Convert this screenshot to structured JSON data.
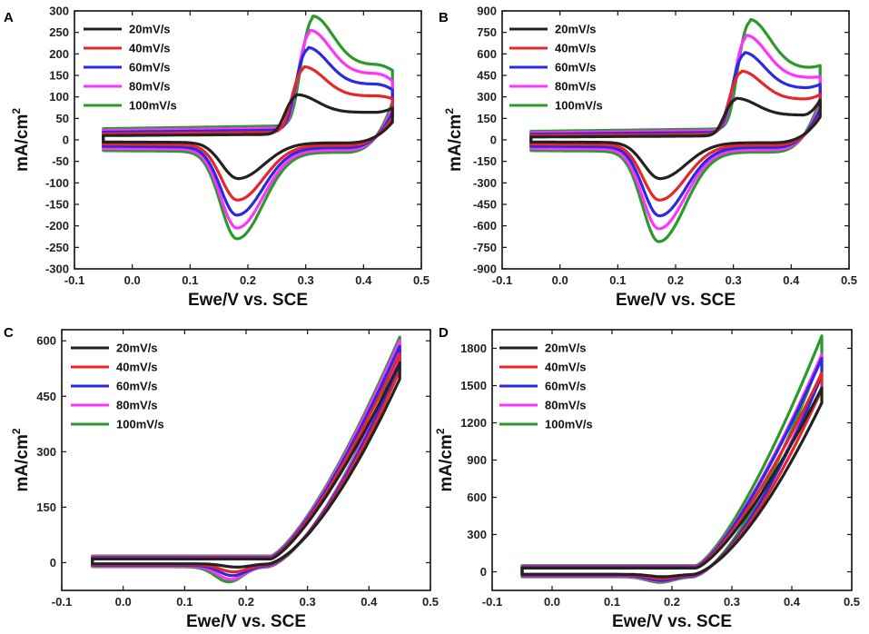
{
  "chart_data": [
    {
      "panel": "A",
      "type": "line",
      "xlabel": "Ewe/V vs. SCE",
      "ylabel": "mA/cm",
      "ylabel_sup": "2",
      "xlim": [
        -0.1,
        0.5
      ],
      "ylim": [
        -300,
        300
      ],
      "xticks": [
        -0.1,
        0.0,
        0.1,
        0.2,
        0.3,
        0.4,
        0.5
      ],
      "xtick_labels": [
        "-0.1",
        "0.0",
        "0.1",
        "0.2",
        "0.3",
        "0.4",
        "0.5"
      ],
      "yticks": [
        -300,
        -250,
        -200,
        -150,
        -100,
        -50,
        0,
        50,
        100,
        150,
        200,
        250,
        300
      ],
      "ytick_labels": [
        "-300",
        "-250",
        "-200",
        "-150",
        "-100",
        "-50",
        "0",
        "50",
        "100",
        "150",
        "200",
        "250",
        "300"
      ],
      "kind": "cv",
      "series": [
        {
          "name": "20mV/s",
          "color": "#222222",
          "base_c": 10,
          "base_a": -5,
          "slope_c": 60,
          "slope_a": 25,
          "ox_peak": 105,
          "ox_x": 0.285,
          "red_peak": -90,
          "red_x": 0.183,
          "end": 75
        },
        {
          "name": "40mV/s",
          "color": "#e8262a",
          "base_c": 14,
          "base_a": -10,
          "slope_c": 80,
          "slope_a": 35,
          "ox_peak": 170,
          "ox_x": 0.297,
          "red_peak": -140,
          "red_x": 0.182,
          "end": 95
        },
        {
          "name": "60mV/s",
          "color": "#2a2ae0",
          "base_c": 18,
          "base_a": -15,
          "slope_c": 100,
          "slope_a": 40,
          "ox_peak": 215,
          "ox_x": 0.303,
          "red_peak": -175,
          "red_x": 0.181,
          "end": 115
        },
        {
          "name": "80mV/s",
          "color": "#ff33ff",
          "base_c": 22,
          "base_a": -20,
          "slope_c": 120,
          "slope_a": 45,
          "ox_peak": 255,
          "ox_x": 0.307,
          "red_peak": -205,
          "red_x": 0.181,
          "end": 135
        },
        {
          "name": "100mV/s",
          "color": "#2a9a2a",
          "base_c": 26,
          "base_a": -25,
          "slope_c": 140,
          "slope_a": 50,
          "ox_peak": 288,
          "ox_x": 0.312,
          "red_peak": -230,
          "red_x": 0.181,
          "end": 160
        }
      ]
    },
    {
      "panel": "B",
      "type": "line",
      "xlabel": "Ewe/V vs. SCE",
      "ylabel": "mA/cm",
      "ylabel_sup": "2",
      "xlim": [
        -0.1,
        0.5
      ],
      "ylim": [
        -900,
        900
      ],
      "xticks": [
        -0.1,
        0.0,
        0.1,
        0.2,
        0.3,
        0.4,
        0.5
      ],
      "xtick_labels": [
        "-0.1",
        "0.0",
        "0.1",
        "0.2",
        "0.3",
        "0.4",
        "0.5"
      ],
      "yticks": [
        -900,
        -750,
        -600,
        -450,
        -300,
        -150,
        0,
        150,
        300,
        450,
        600,
        750,
        900
      ],
      "ytick_labels": [
        "-900",
        "-750",
        "-600",
        "-450",
        "-300",
        "-150",
        "0",
        "150",
        "300",
        "450",
        "600",
        "750",
        "900"
      ],
      "kind": "cv",
      "series": [
        {
          "name": "20mV/s",
          "color": "#222222",
          "base_c": 20,
          "base_a": -15,
          "slope_c": 150,
          "slope_a": 60,
          "ox_peak": 290,
          "ox_x": 0.305,
          "red_peak": -270,
          "red_x": 0.173,
          "end": 290
        },
        {
          "name": "40mV/s",
          "color": "#e8262a",
          "base_c": 30,
          "base_a": -30,
          "slope_c": 200,
          "slope_a": 80,
          "ox_peak": 480,
          "ox_x": 0.313,
          "red_peak": -420,
          "red_x": 0.172,
          "end": 320
        },
        {
          "name": "60mV/s",
          "color": "#2a2ae0",
          "base_c": 40,
          "base_a": -45,
          "slope_c": 250,
          "slope_a": 95,
          "ox_peak": 610,
          "ox_x": 0.318,
          "red_peak": -530,
          "red_x": 0.172,
          "end": 390
        },
        {
          "name": "80mV/s",
          "color": "#ff33ff",
          "base_c": 50,
          "base_a": -60,
          "slope_c": 290,
          "slope_a": 110,
          "ox_peak": 730,
          "ox_x": 0.322,
          "red_peak": -620,
          "red_x": 0.171,
          "end": 440
        },
        {
          "name": "100mV/s",
          "color": "#2a9a2a",
          "base_c": 60,
          "base_a": -75,
          "slope_c": 330,
          "slope_a": 125,
          "ox_peak": 840,
          "ox_x": 0.328,
          "red_peak": -710,
          "red_x": 0.171,
          "end": 520
        }
      ]
    },
    {
      "panel": "C",
      "type": "line",
      "xlabel": "Ewe/V vs. SCE",
      "ylabel": "mA/cm",
      "ylabel_sup": "2",
      "xlim": [
        -0.1,
        0.5
      ],
      "ylim": [
        -75,
        630
      ],
      "xticks": [
        -0.1,
        0.0,
        0.1,
        0.2,
        0.3,
        0.4,
        0.5
      ],
      "xtick_labels": [
        "-0.1",
        "0.0",
        "0.1",
        "0.2",
        "0.3",
        "0.4",
        "0.5"
      ],
      "yticks": [
        0,
        150,
        300,
        450,
        600
      ],
      "ytick_labels": [
        "0",
        "150",
        "300",
        "450",
        "600"
      ],
      "kind": "oer",
      "series": [
        {
          "name": "20mV/s",
          "color": "#222222",
          "base_c": 10,
          "base_a": -3,
          "end": 540,
          "dip": -12,
          "dip_x": 0.185
        },
        {
          "name": "40mV/s",
          "color": "#e8262a",
          "base_c": 12,
          "base_a": -5,
          "end": 565,
          "dip": -25,
          "dip_x": 0.18
        },
        {
          "name": "60mV/s",
          "color": "#2a2ae0",
          "base_c": 14,
          "base_a": -7,
          "end": 585,
          "dip": -35,
          "dip_x": 0.178
        },
        {
          "name": "80mV/s",
          "color": "#ff33ff",
          "base_c": 16,
          "base_a": -9,
          "end": 600,
          "dip": -45,
          "dip_x": 0.175
        },
        {
          "name": "100mV/s",
          "color": "#2a9a2a",
          "base_c": 18,
          "base_a": -11,
          "end": 610,
          "dip": -52,
          "dip_x": 0.172
        }
      ]
    },
    {
      "panel": "D",
      "type": "line",
      "xlabel": "Ewe/V vs. SCE",
      "ylabel": "mA/cm",
      "ylabel_sup": "2",
      "xlim": [
        -0.1,
        0.5
      ],
      "ylim": [
        -150,
        1950
      ],
      "xticks": [
        -0.1,
        0.0,
        0.1,
        0.2,
        0.3,
        0.4,
        0.5
      ],
      "xtick_labels": [
        "-0.1",
        "0.0",
        "0.1",
        "0.2",
        "0.3",
        "0.4",
        "0.5"
      ],
      "yticks": [
        0,
        300,
        600,
        900,
        1200,
        1500,
        1800
      ],
      "ytick_labels": [
        "0",
        "300",
        "600",
        "900",
        "1200",
        "1500",
        "1800"
      ],
      "kind": "oer",
      "series": [
        {
          "name": "20mV/s",
          "color": "#222222",
          "base_c": 30,
          "base_a": -20,
          "end": 1480,
          "dip": -40,
          "dip_x": 0.185
        },
        {
          "name": "40mV/s",
          "color": "#e8262a",
          "base_c": 35,
          "base_a": -25,
          "end": 1600,
          "dip": -55,
          "dip_x": 0.183
        },
        {
          "name": "60mV/s",
          "color": "#2a2ae0",
          "base_c": 40,
          "base_a": -30,
          "end": 1720,
          "dip": -70,
          "dip_x": 0.182
        },
        {
          "name": "80mV/s",
          "color": "#ff33ff",
          "base_c": 45,
          "base_a": -35,
          "end": 1750,
          "dip": -75,
          "dip_x": 0.181
        },
        {
          "name": "100mV/s",
          "color": "#2a9a2a",
          "base_c": 50,
          "base_a": -40,
          "end": 1900,
          "dip": -85,
          "dip_x": 0.18
        }
      ]
    }
  ]
}
